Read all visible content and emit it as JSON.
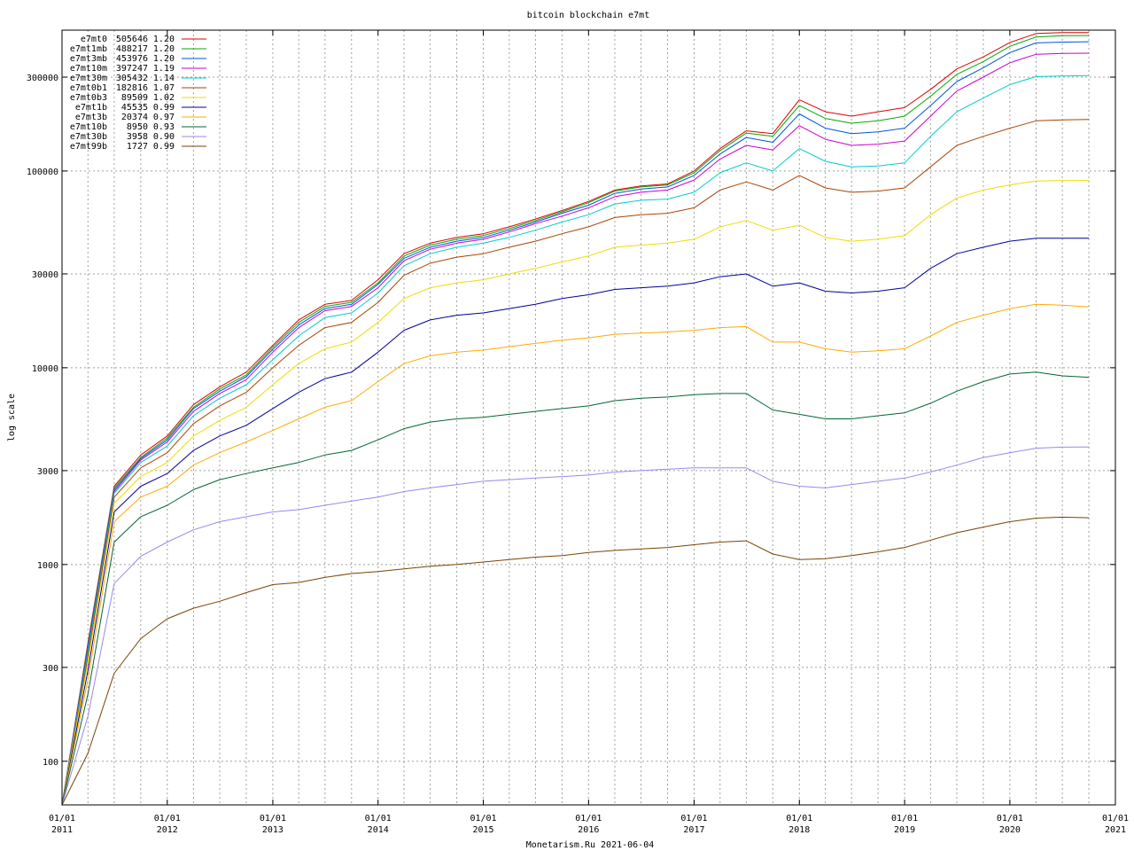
{
  "chart_data": {
    "type": "line",
    "title": "bitcoin blockchain e7mt",
    "subtitle": "",
    "xlabel": "Monetarism.Ru 2021-06-04",
    "ylabel": "log scale",
    "y_scale": "log",
    "ylim": [
      60,
      520000
    ],
    "xlim": [
      "2011-01-01",
      "2021-01-01"
    ],
    "grid": true,
    "legend_position": "top-left",
    "x_ticks": [
      {
        "date": "2011-01-01",
        "line1": "01/01",
        "line2": "2011"
      },
      {
        "date": "2012-01-01",
        "line1": "01/01",
        "line2": "2012"
      },
      {
        "date": "2013-01-01",
        "line1": "01/01",
        "line2": "2013"
      },
      {
        "date": "2014-01-01",
        "line1": "01/01",
        "line2": "2014"
      },
      {
        "date": "2015-01-01",
        "line1": "01/01",
        "line2": "2015"
      },
      {
        "date": "2016-01-01",
        "line1": "01/01",
        "line2": "2016"
      },
      {
        "date": "2017-01-01",
        "line1": "01/01",
        "line2": "2017"
      },
      {
        "date": "2018-01-01",
        "line1": "01/01",
        "line2": "2018"
      },
      {
        "date": "2019-01-01",
        "line1": "01/01",
        "line2": "2019"
      },
      {
        "date": "2020-01-01",
        "line1": "01/01",
        "line2": "2020"
      },
      {
        "date": "2021-01-01",
        "line1": "01/01",
        "line2": "2021"
      }
    ],
    "y_ticks": [
      {
        "value": 100,
        "label": "100"
      },
      {
        "value": 300,
        "label": "300"
      },
      {
        "value": 1000,
        "label": "1000"
      },
      {
        "value": 3000,
        "label": "3000"
      },
      {
        "value": 10000,
        "label": "10000"
      },
      {
        "value": 30000,
        "label": "30000"
      },
      {
        "value": 100000,
        "label": "100000"
      },
      {
        "value": 300000,
        "label": "300000"
      }
    ],
    "x": [
      "2011-01-01",
      "2011-04-01",
      "2011-07-01",
      "2011-10-01",
      "2012-01-01",
      "2012-04-01",
      "2012-07-01",
      "2012-10-01",
      "2013-01-01",
      "2013-04-01",
      "2013-07-01",
      "2013-10-01",
      "2014-01-01",
      "2014-04-01",
      "2014-07-01",
      "2014-10-01",
      "2015-01-01",
      "2015-04-01",
      "2015-07-01",
      "2015-10-01",
      "2016-01-01",
      "2016-04-01",
      "2016-07-01",
      "2016-10-01",
      "2017-01-01",
      "2017-04-01",
      "2017-07-01",
      "2017-10-01",
      "2018-01-01",
      "2018-04-01",
      "2018-07-01",
      "2018-10-01",
      "2019-01-01",
      "2019-04-01",
      "2019-07-01",
      "2019-10-01",
      "2020-01-01",
      "2020-04-01",
      "2020-07-01",
      "2020-10-01"
    ],
    "series": [
      {
        "name": "e7mt0",
        "count": "505646",
        "ratio": "1.20",
        "color": "#dd0000",
        "values": [
          60,
          400,
          2500,
          3600,
          4500,
          6500,
          8000,
          9500,
          13000,
          17500,
          21000,
          22000,
          28000,
          38000,
          43000,
          46000,
          48000,
          52000,
          57000,
          63000,
          70000,
          80000,
          84000,
          86000,
          100000,
          130000,
          160000,
          155000,
          230000,
          200000,
          190000,
          200000,
          210000,
          260000,
          330000,
          380000,
          450000,
          500000,
          505000,
          505646
        ]
      },
      {
        "name": "e7mt1mb",
        "count": "488217",
        "ratio": "1.20",
        "color": "#00aa00",
        "values": [
          60,
          390,
          2450,
          3500,
          4400,
          6300,
          7800,
          9200,
          12700,
          17000,
          20500,
          21500,
          27000,
          37000,
          42000,
          45000,
          47000,
          51000,
          56000,
          62000,
          69000,
          79000,
          83000,
          85000,
          98000,
          127000,
          156000,
          150000,
          215000,
          185000,
          175000,
          180000,
          190000,
          240000,
          310000,
          360000,
          430000,
          480000,
          487000,
          488217
        ]
      },
      {
        "name": "e7mt3mb",
        "count": "453976",
        "ratio": "1.20",
        "color": "#0055dd",
        "values": [
          60,
          380,
          2400,
          3450,
          4300,
          6200,
          7600,
          9000,
          12400,
          16500,
          20000,
          21000,
          26500,
          36000,
          41000,
          44000,
          46000,
          50000,
          55000,
          61000,
          67000,
          77000,
          81000,
          83000,
          95000,
          122000,
          148000,
          140000,
          195000,
          165000,
          155000,
          158000,
          165000,
          215000,
          285000,
          335000,
          400000,
          448000,
          452000,
          453976
        ]
      },
      {
        "name": "e7mt10m",
        "count": "397247",
        "ratio": "1.19",
        "color": "#cc00cc",
        "values": [
          60,
          370,
          2350,
          3400,
          4200,
          6000,
          7400,
          8700,
          12000,
          16000,
          19500,
          20500,
          25500,
          35000,
          40000,
          43000,
          45000,
          49000,
          54000,
          59000,
          65000,
          74000,
          78000,
          80000,
          90000,
          115000,
          135000,
          128000,
          170000,
          145000,
          135000,
          137000,
          142000,
          190000,
          255000,
          300000,
          355000,
          392000,
          396000,
          397247
        ]
      },
      {
        "name": "e7mt30m",
        "count": "305432",
        "ratio": "1.14",
        "color": "#00cccc",
        "values": [
          60,
          360,
          2300,
          3300,
          4000,
          5700,
          7000,
          8200,
          11000,
          14500,
          18000,
          19000,
          24000,
          33000,
          38000,
          41000,
          43000,
          46000,
          50000,
          55000,
          60000,
          68000,
          71000,
          72000,
          78000,
          98000,
          110000,
          100000,
          130000,
          112000,
          105000,
          106000,
          110000,
          150000,
          200000,
          235000,
          275000,
          302000,
          304000,
          305432
        ]
      },
      {
        "name": "e7mt0b1",
        "count": "182816",
        "ratio": "1.07",
        "color": "#aa4400",
        "values": [
          60,
          340,
          2200,
          3100,
          3700,
          5200,
          6400,
          7500,
          10000,
          13000,
          16000,
          17000,
          21500,
          29500,
          34000,
          36500,
          38000,
          41000,
          44000,
          48000,
          52000,
          58000,
          60000,
          61000,
          65000,
          80000,
          88000,
          80000,
          95000,
          82000,
          78000,
          79000,
          82000,
          105000,
          135000,
          150000,
          165000,
          180000,
          182000,
          182816
        ]
      },
      {
        "name": "e7mt0b3",
        "count": "89509",
        "ratio": "1.02",
        "color": "#eedd00",
        "values": [
          60,
          320,
          2050,
          2800,
          3300,
          4500,
          5400,
          6300,
          8200,
          10500,
          12500,
          13500,
          17000,
          22500,
          25500,
          27000,
          28000,
          30000,
          32000,
          34500,
          37000,
          41000,
          42000,
          43000,
          45000,
          52000,
          56000,
          50000,
          53000,
          46000,
          44000,
          45000,
          47000,
          60000,
          73000,
          80000,
          85000,
          89000,
          89300,
          89509
        ]
      },
      {
        "name": "e7mt1b",
        "count": "45535",
        "ratio": "0.99",
        "color": "#000099",
        "values": [
          60,
          290,
          1850,
          2500,
          2900,
          3800,
          4500,
          5100,
          6200,
          7500,
          8800,
          9500,
          12000,
          15500,
          17500,
          18500,
          19000,
          20000,
          21000,
          22500,
          23500,
          25000,
          25500,
          26000,
          27000,
          29000,
          30000,
          26000,
          27000,
          24500,
          24000,
          24500,
          25500,
          32000,
          38000,
          41000,
          44000,
          45500,
          45500,
          45535
        ]
      },
      {
        "name": "e7mt3b",
        "count": "20374",
        "ratio": "0.97",
        "color": "#ffaa00",
        "values": [
          60,
          260,
          1650,
          2200,
          2500,
          3200,
          3700,
          4200,
          4800,
          5500,
          6300,
          6800,
          8500,
          10500,
          11500,
          12000,
          12300,
          12800,
          13300,
          13800,
          14200,
          14800,
          15000,
          15200,
          15500,
          16000,
          16200,
          13500,
          13500,
          12500,
          12000,
          12200,
          12500,
          14500,
          17000,
          18500,
          20000,
          21000,
          20800,
          20374
        ]
      },
      {
        "name": "e7mt10b",
        "count": "8950",
        "ratio": "0.93",
        "color": "#006633",
        "values": [
          60,
          220,
          1300,
          1750,
          2000,
          2400,
          2700,
          2900,
          3100,
          3300,
          3600,
          3800,
          4300,
          4900,
          5300,
          5500,
          5600,
          5800,
          6000,
          6200,
          6400,
          6800,
          7000,
          7100,
          7300,
          7400,
          7400,
          6100,
          5800,
          5500,
          5500,
          5700,
          5900,
          6600,
          7600,
          8500,
          9300,
          9500,
          9100,
          8950
        ]
      },
      {
        "name": "e7mt30b",
        "count": "3958",
        "ratio": "0.90",
        "color": "#9988ee",
        "values": [
          60,
          170,
          800,
          1100,
          1300,
          1500,
          1650,
          1750,
          1850,
          1900,
          2000,
          2100,
          2200,
          2350,
          2450,
          2550,
          2650,
          2700,
          2750,
          2800,
          2850,
          2950,
          3000,
          3050,
          3100,
          3100,
          3100,
          2650,
          2500,
          2450,
          2550,
          2650,
          2750,
          2950,
          3200,
          3500,
          3700,
          3900,
          3950,
          3958
        ]
      },
      {
        "name": "e7mt99b",
        "count": "1727",
        "ratio": "0.99",
        "color": "#774400",
        "values": [
          60,
          110,
          280,
          420,
          530,
          600,
          650,
          720,
          790,
          810,
          860,
          900,
          920,
          950,
          980,
          1000,
          1030,
          1060,
          1090,
          1110,
          1150,
          1180,
          1200,
          1220,
          1260,
          1300,
          1320,
          1130,
          1060,
          1070,
          1110,
          1160,
          1220,
          1330,
          1450,
          1550,
          1650,
          1720,
          1740,
          1727
        ]
      }
    ]
  }
}
